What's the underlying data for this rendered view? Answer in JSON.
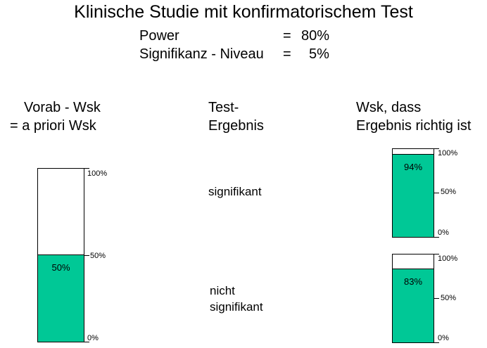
{
  "title": "Klinische Studie mit konfirmatorischem Test",
  "params": {
    "power_label": "Power",
    "power_eq": "=",
    "power_value": "80%",
    "alpha_label": "Signifikanz - Niveau",
    "alpha_eq": "=",
    "alpha_value": "5%"
  },
  "columns": {
    "prior_line1": "Vorab - Wsk",
    "prior_line2": "= a priori Wsk",
    "test_line1": "Test-",
    "test_line2": "Ergebnis",
    "post_line1": "Wsk, dass",
    "post_line2": "Ergebnis richtig ist"
  },
  "results": {
    "sig": "signifikant",
    "nonsig_line1": "nicht",
    "nonsig_line2": "signifikant"
  },
  "ticks": {
    "high": "100%",
    "mid": "50%",
    "low": "0%"
  },
  "gauges": {
    "prior": {
      "fraction": 0.5,
      "label": "50%"
    },
    "post_sig": {
      "fraction": 0.94,
      "label": "94%"
    },
    "post_nonsig": {
      "fraction": 0.83,
      "label": "83%"
    }
  },
  "colors": {
    "fill": "#00c896",
    "border": "#000000"
  }
}
